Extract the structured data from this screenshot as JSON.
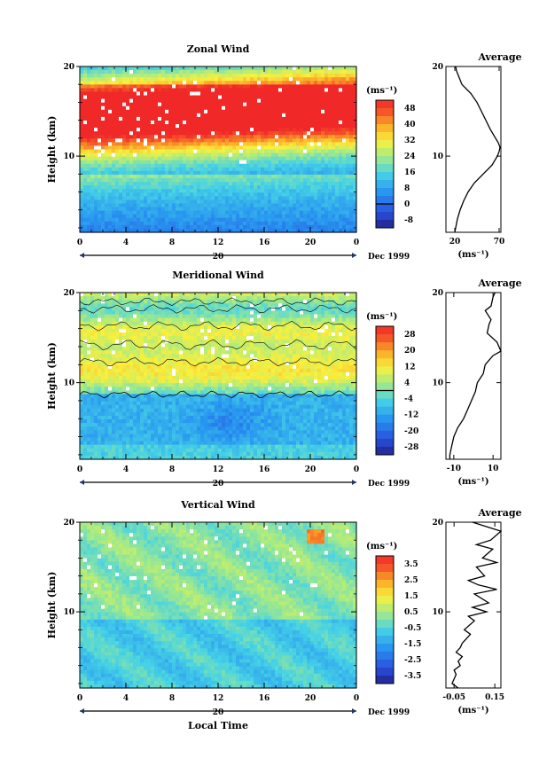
{
  "figure": {
    "xlabel": "Local Time",
    "ylabel": "Height (km)",
    "x_ticks": [
      "0",
      "4",
      "8",
      "12",
      "16",
      "20",
      "0"
    ],
    "y_ticks": [
      "10",
      "20"
    ],
    "date_day": "20",
    "date_label": "Dec 1999",
    "unit_label": "(ms⁻¹)",
    "avg_title": "Average",
    "avg_unit": "(ms⁻¹)"
  },
  "chart_data": [
    {
      "type": "heatmap",
      "title": "Zonal Wind",
      "xlabel": "Local Time",
      "ylabel": "Height (km)",
      "xlim": [
        0,
        24
      ],
      "ylim": [
        1.5,
        20
      ],
      "colorbar_ticks": [
        "48",
        "40",
        "32",
        "24",
        "16",
        "8",
        "0",
        "-8"
      ],
      "colorbar_range": [
        -12,
        52
      ],
      "colorbar_zero_line": 0,
      "profile_fn": "zonal",
      "grid": false
    },
    {
      "type": "line",
      "title": "Average",
      "xlabel": "(ms⁻¹)",
      "x_ticks": [
        "20",
        "70"
      ],
      "xlim": [
        10,
        72
      ],
      "ylim": [
        1.5,
        20
      ],
      "series": [
        {
          "x": [
            20,
            21,
            23,
            26,
            30,
            35,
            42,
            52,
            62,
            68,
            70,
            71,
            69,
            66,
            60,
            55,
            50,
            45,
            38,
            33,
            28,
            24,
            22,
            21
          ],
          "y": [
            1.5,
            2,
            3,
            4,
            5,
            6,
            7,
            8,
            9,
            10,
            10.5,
            11,
            11.5,
            12,
            13,
            14,
            15,
            16,
            17,
            17.5,
            18,
            19,
            19.5,
            20
          ]
        }
      ]
    },
    {
      "type": "heatmap",
      "title": "Meridional Wind",
      "xlabel": "Local Time",
      "ylabel": "Height (km)",
      "xlim": [
        0,
        24
      ],
      "ylim": [
        1.5,
        20
      ],
      "colorbar_ticks": [
        "28",
        "20",
        "12",
        "4",
        "-4",
        "-12",
        "-20",
        "-28"
      ],
      "colorbar_range": [
        -32,
        32
      ],
      "colorbar_zero_line": 0,
      "profile_fn": "meridional",
      "grid": false
    },
    {
      "type": "line",
      "title": "Average",
      "xlabel": "(ms⁻¹)",
      "x_ticks": [
        "-10",
        "10"
      ],
      "xlim": [
        -14,
        14
      ],
      "ylim": [
        1.5,
        20
      ],
      "series": [
        {
          "x": [
            -12,
            -12,
            -11,
            -10,
            -8,
            -5,
            -3,
            -1,
            1,
            2,
            5,
            6,
            10,
            14,
            12,
            7,
            8,
            9,
            6,
            9,
            10,
            11
          ],
          "y": [
            1.5,
            2,
            3,
            4,
            5,
            6,
            7,
            8,
            9,
            10,
            11,
            12,
            13,
            13.5,
            14.5,
            15.5,
            16.5,
            17,
            18,
            18.5,
            19.5,
            20
          ]
        }
      ]
    },
    {
      "type": "heatmap",
      "title": "Vertical Wind",
      "xlabel": "Local Time",
      "ylabel": "Height (km)",
      "xlim": [
        0,
        24
      ],
      "ylim": [
        1.5,
        20
      ],
      "colorbar_ticks": [
        "3.5",
        "2.5",
        "1.5",
        "0.5",
        "-0.5",
        "-1.5",
        "-2.5",
        "-3.5"
      ],
      "colorbar_range": [
        -4,
        4
      ],
      "colorbar_zero_line": null,
      "profile_fn": "vertical",
      "grid": false
    },
    {
      "type": "line",
      "title": "Average",
      "xlabel": "(ms⁻¹)",
      "x_ticks": [
        "-0.05",
        "0.15"
      ],
      "xlim": [
        -0.09,
        0.18
      ],
      "ylim": [
        1.5,
        20
      ],
      "series": [
        {
          "x": [
            -0.03,
            -0.06,
            -0.05,
            -0.04,
            -0.05,
            -0.02,
            -0.03,
            -0.01,
            -0.04,
            -0.02,
            -0.01,
            0.01,
            0.03,
            0.0,
            0.05,
            0.02,
            0.11,
            0.04,
            0.12,
            0.05,
            0.16,
            0.07,
            0.02,
            0.1,
            0.06,
            0.16,
            0.09,
            0.14,
            0.06,
            0.13,
            0.18,
            0.04
          ],
          "y": [
            1.5,
            2,
            2.5,
            3,
            3.5,
            4,
            4.5,
            5,
            5.5,
            6,
            6.5,
            7,
            7.5,
            8,
            9,
            9.5,
            10,
            10.5,
            11,
            12,
            12.5,
            13,
            13.5,
            14,
            15,
            15.5,
            16,
            17,
            17.5,
            18,
            19,
            20
          ]
        }
      ]
    }
  ]
}
